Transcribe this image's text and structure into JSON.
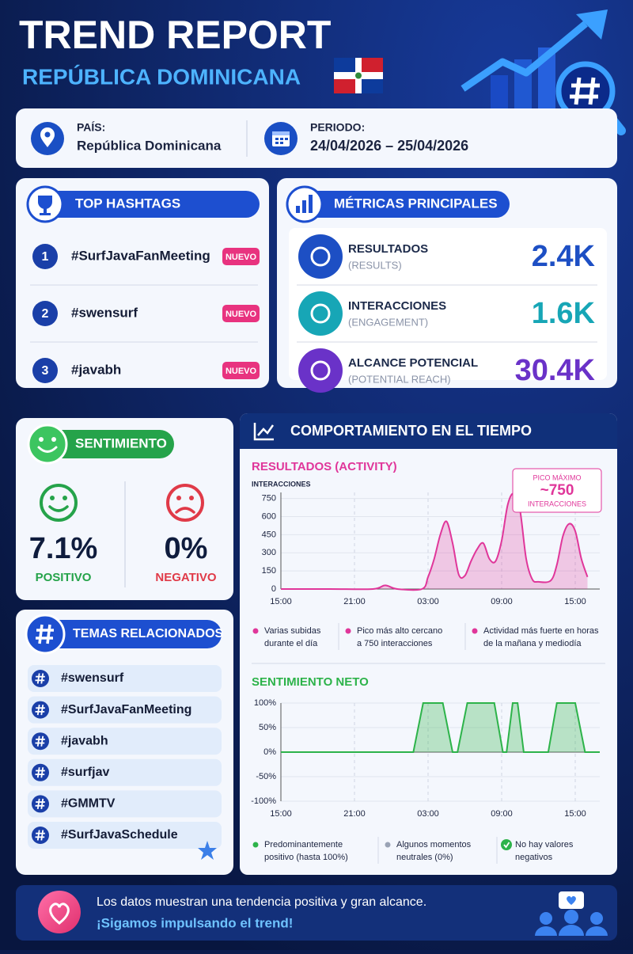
{
  "header": {
    "title": "TREND REPORT",
    "subtitle": "REPÚBLICA DOMINICANA"
  },
  "info": {
    "country_label": "PAÍS:",
    "country": "República Dominicana",
    "period_label": "PERIODO:",
    "period": "24/04/2026 – 25/04/2026"
  },
  "hashtags": {
    "title": "TOP HASHTAGS",
    "items": [
      {
        "rank": 1,
        "tag": "#SurfJavaFanMeeting",
        "badge": "NUEVO"
      },
      {
        "rank": 2,
        "tag": "#swensurf",
        "badge": "NUEVO"
      },
      {
        "rank": 3,
        "tag": "#javabh",
        "badge": "NUEVO"
      }
    ]
  },
  "metrics": {
    "title": "MÉTRICAS PRINCIPALES",
    "items": [
      {
        "label": "RESULTADOS",
        "sublabel": "(RESULTS)",
        "value": "2.4K",
        "color": "#1d4fc4"
      },
      {
        "label": "INTERACCIONES",
        "sublabel": "(ENGAGEMENT)",
        "value": "1.6K",
        "color": "#17a6b6"
      },
      {
        "label": "ALCANCE POTENCIAL",
        "sublabel": "(POTENTIAL REACH)",
        "value": "30.4K",
        "color": "#6a32c8"
      }
    ]
  },
  "sentiment": {
    "title": "SENTIMIENTO",
    "positive": {
      "value": "7.1%",
      "label": "POSITIVO"
    },
    "negative": {
      "value": "0%",
      "label": "NEGATIVO"
    }
  },
  "related": {
    "title": "TEMAS RELACIONADOS",
    "items": [
      "#swensurf",
      "#SurfJavaFanMeeting",
      "#javabh",
      "#surfjav",
      "#GMMTV",
      "#SurfJavaSchedule"
    ]
  },
  "behavior": {
    "title": "COMPORTAMIENTO EN EL TIEMPO"
  },
  "chart_data": [
    {
      "type": "area",
      "title": "RESULTADOS (ACTIVITY)",
      "ylabel": "INTERACCIONES",
      "color": "#e0369a",
      "smooth": true,
      "grid": true,
      "x": [
        0,
        4,
        7.5,
        8.5,
        9.5,
        11.5,
        12,
        12.5,
        13,
        13.5,
        14,
        14.5,
        15,
        15.5,
        16,
        16.5,
        17,
        17.5,
        18,
        18.5,
        19,
        19.5,
        20,
        20.5,
        21,
        22,
        22.5,
        23,
        23.5,
        24,
        24.5,
        25
      ],
      "values": [
        0,
        0,
        0,
        30,
        0,
        0,
        100,
        250,
        450,
        560,
        380,
        120,
        110,
        230,
        330,
        380,
        250,
        230,
        400,
        700,
        790,
        650,
        250,
        80,
        60,
        70,
        200,
        440,
        540,
        480,
        250,
        100
      ],
      "xlim": [
        0,
        26
      ],
      "xticks": [
        {
          "value": 0,
          "label": "15:00"
        },
        {
          "value": 6,
          "label": "21:00"
        },
        {
          "value": 12,
          "label": "03:00"
        },
        {
          "value": 18,
          "label": "09:00"
        },
        {
          "value": 24,
          "label": "15:00"
        }
      ],
      "ylim": [
        0,
        800
      ],
      "yticks": [
        0,
        150,
        300,
        450,
        600,
        750
      ],
      "annotation": [
        "PICO MÁXIMO",
        "~750",
        "INTERACCIONES"
      ],
      "notes": [
        [
          "Varias subidas",
          "durante el día"
        ],
        [
          "Pico más alto cercano",
          "a 750 interacciones"
        ],
        [
          "Actividad más fuerte en horas",
          "de la mañana y mediodía"
        ]
      ]
    },
    {
      "type": "area",
      "title": "SENTIMIENTO NETO",
      "color": "#2db34a",
      "smooth": false,
      "grid": true,
      "x": [
        0,
        10.8,
        11.6,
        13.2,
        14,
        14.4,
        15.2,
        17.4,
        18.1,
        18.4,
        18.9,
        19.3,
        19.8,
        21.8,
        22.5,
        24,
        24.8,
        26
      ],
      "values": [
        0,
        0,
        100,
        100,
        0,
        0,
        100,
        100,
        0,
        0,
        100,
        100,
        0,
        0,
        100,
        100,
        0,
        0
      ],
      "xlim": [
        0,
        26
      ],
      "xticks": [
        {
          "value": 0,
          "label": "15:00"
        },
        {
          "value": 6,
          "label": "21:00"
        },
        {
          "value": 12,
          "label": "03:00"
        },
        {
          "value": 18,
          "label": "09:00"
        },
        {
          "value": 24,
          "label": "15:00"
        }
      ],
      "ylim": [
        -100,
        100
      ],
      "yticks": [
        {
          "value": -100,
          "label": "-100%"
        },
        {
          "value": -50,
          "label": "-50%"
        },
        {
          "value": 0,
          "label": "0%"
        },
        {
          "value": 50,
          "label": "50%"
        },
        {
          "value": 100,
          "label": "100%"
        }
      ],
      "notes": [
        [
          "Predominantemente",
          "positivo (hasta 100%)"
        ],
        [
          "Algunos momentos",
          "neutrales (0%)"
        ],
        [
          "No hay valores",
          "negativos"
        ]
      ]
    }
  ],
  "footer": {
    "line1": "Los datos muestran una tendencia positiva y gran alcance.",
    "line2": "¡Sigamos impulsando el trend!"
  }
}
